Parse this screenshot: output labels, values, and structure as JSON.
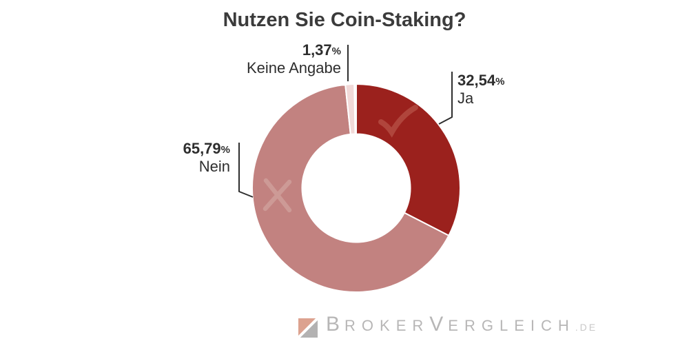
{
  "page": {
    "background": "#FFFFFF"
  },
  "chart_data": {
    "type": "pie",
    "subtype": "donut",
    "title": "Nutzen Sie Coin-Staking?",
    "categories": [
      "Ja",
      "Nein",
      "Keine Angabe"
    ],
    "values": [
      32.54,
      65.79,
      1.37
    ],
    "unit": "%",
    "start_angle_deg": 0,
    "direction": "clockwise",
    "inner_radius_ratio": 0.52,
    "slice_gap_color": "#FFFFFF",
    "leader_line_color": "#2E2E2E",
    "label_text_color": "#2E2E2E",
    "title_color": "#3B3B3B",
    "legend": "none",
    "slices": [
      {
        "label": "Ja",
        "value": 32.54,
        "value_label": "32,54",
        "color": "#9B211D",
        "marker": "check",
        "marker_color": "#B0453C"
      },
      {
        "label": "Nein",
        "value": 65.79,
        "value_label": "65,79",
        "color": "#C28280",
        "marker": "cross",
        "marker_color": "#CD9A96"
      },
      {
        "label": "Keine Angabe",
        "value": 1.37,
        "value_label": "1,37",
        "color": "#F1D9D8",
        "marker": null,
        "marker_color": null
      }
    ]
  },
  "logo": {
    "brand_initial_1": "B",
    "brand_part_1": "ROKER",
    "brand_initial_2": "V",
    "brand_part_2": "ERGLEICH",
    "tld": ".DE",
    "text_color": "#B7B6B6",
    "tld_color": "#C9C8C8",
    "icon_color_top": "#DCA28F",
    "icon_color_bottom": "#B3B2B2",
    "icon_stripe_color": "#FFFFFF"
  }
}
